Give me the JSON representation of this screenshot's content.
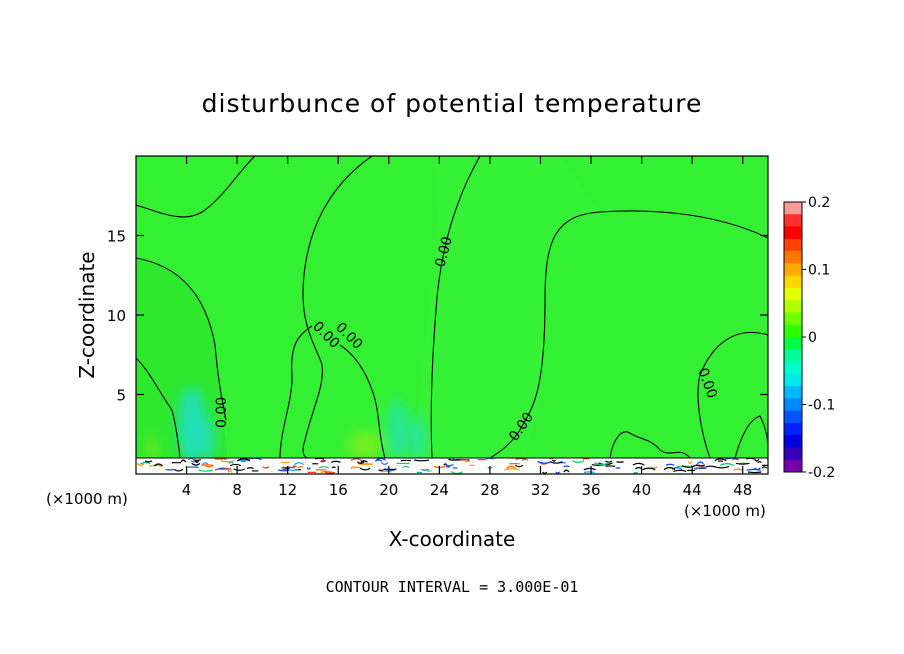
{
  "chart_data": {
    "type": "heatmap",
    "title": "disturbunce of potential temperature",
    "xlabel": "X-coordinate",
    "ylabel": "Z-coordinate",
    "x_unit": "(×1000 m)",
    "z_unit": "(×1000 m)",
    "xlim": [
      0,
      50
    ],
    "ylim": [
      0,
      20
    ],
    "x_ticks": [
      4,
      8,
      12,
      16,
      20,
      24,
      28,
      32,
      36,
      40,
      44,
      48
    ],
    "y_ticks": [
      5,
      10,
      15
    ],
    "contour_interval_label": "CONTOUR INTERVAL = 3.000E-01",
    "contour_label": "0.00",
    "colorbar": {
      "ticks": [
        "0.2",
        "0.1",
        "0",
        "-0.1",
        "-0.2"
      ],
      "range": [
        -0.2,
        0.2
      ],
      "colors": [
        "#ff9a9a",
        "#ff3030",
        "#ff0000",
        "#ff4400",
        "#ff7700",
        "#ffaa00",
        "#ffd700",
        "#e6ff00",
        "#b0ff00",
        "#70ff00",
        "#30ff00",
        "#00ff40",
        "#00ff99",
        "#00ffcc",
        "#00e8e8",
        "#00b8ff",
        "#0088ff",
        "#0055ff",
        "#0022ff",
        "#0000dd",
        "#3300bb",
        "#7700aa"
      ]
    },
    "background_value": 0,
    "grid": false
  }
}
